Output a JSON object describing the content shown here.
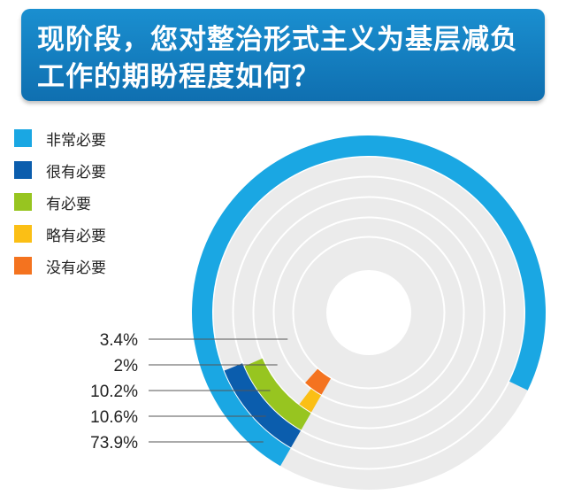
{
  "title": "现阶段，您对整治形式主义为基层减负工作的期盼程度如何？",
  "chart_data": {
    "type": "pie",
    "variant": "radial-bar",
    "title": "现阶段，您对整治形式主义为基层减负工作的期盼程度如何？",
    "legend_position": "top-left",
    "series": [
      {
        "name": "非常必要",
        "value": 73.9,
        "label": "73.9%",
        "color": "#1aa7e3"
      },
      {
        "name": "很有必要",
        "value": 10.6,
        "label": "10.6%",
        "color": "#0b5dad"
      },
      {
        "name": "有必要",
        "value": 10.2,
        "label": "10.2%",
        "color": "#97c520"
      },
      {
        "name": "略有必要",
        "value": 2,
        "label": "2%",
        "color": "#fbbf15"
      },
      {
        "name": "没有必要",
        "value": 3.4,
        "label": "3.4%",
        "color": "#f4731f"
      }
    ],
    "background_color": "#ebebeb"
  }
}
